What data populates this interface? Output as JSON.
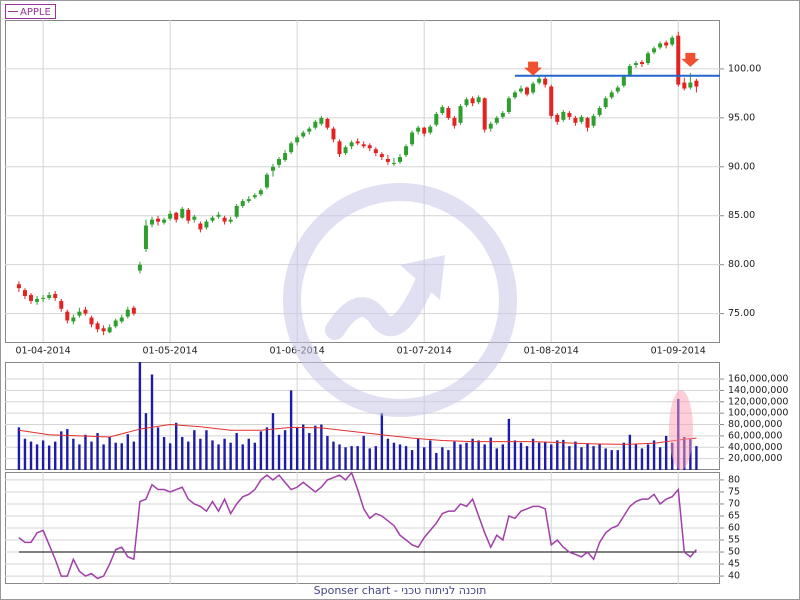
{
  "footer": "Sponser chart - תוכנה לניתוח טכני",
  "chart_data": [
    {
      "type": "candlestick",
      "series": [
        {
          "name": "APPLE",
          "color": "#993399",
          "up_color": "#2e9e2e",
          "down_color": "#e32222",
          "ohlc": [
            [
              78.0,
              78.3,
              77.2,
              77.6
            ],
            [
              77.4,
              77.6,
              76.5,
              76.8
            ],
            [
              76.9,
              77.1,
              76.0,
              76.3
            ],
            [
              76.2,
              76.8,
              75.9,
              76.5
            ],
            [
              76.5,
              76.9,
              76.2,
              76.6
            ],
            [
              76.6,
              77.2,
              76.4,
              76.9
            ],
            [
              77.0,
              77.3,
              76.3,
              76.6
            ],
            [
              76.3,
              76.5,
              75.2,
              75.5
            ],
            [
              75.2,
              75.4,
              74.0,
              74.3
            ],
            [
              74.2,
              74.9,
              73.9,
              74.6
            ],
            [
              74.8,
              75.6,
              74.6,
              75.2
            ],
            [
              75.4,
              75.7,
              74.8,
              75.0
            ],
            [
              74.6,
              74.8,
              73.6,
              73.9
            ],
            [
              74.0,
              74.2,
              73.1,
              73.4
            ],
            [
              73.5,
              73.8,
              72.8,
              73.2
            ],
            [
              73.1,
              73.9,
              73.0,
              73.6
            ],
            [
              73.7,
              74.5,
              73.5,
              74.3
            ],
            [
              74.2,
              74.9,
              74.0,
              74.6
            ],
            [
              74.7,
              75.7,
              74.5,
              75.4
            ],
            [
              75.6,
              75.8,
              74.8,
              75.0
            ],
            [
              79.4,
              80.3,
              79.1,
              80.0
            ],
            [
              81.6,
              84.6,
              81.3,
              84.0
            ],
            [
              84.1,
              84.9,
              83.8,
              84.6
            ],
            [
              84.7,
              85.0,
              84.0,
              84.4
            ],
            [
              84.3,
              84.8,
              84.1,
              84.6
            ],
            [
              84.7,
              85.5,
              84.5,
              85.2
            ],
            [
              85.3,
              85.4,
              84.3,
              84.6
            ],
            [
              84.8,
              85.9,
              84.7,
              85.7
            ],
            [
              85.6,
              85.8,
              84.2,
              84.5
            ],
            [
              84.6,
              85.1,
              84.3,
              84.9
            ],
            [
              84.2,
              84.4,
              83.3,
              83.6
            ],
            [
              83.8,
              84.6,
              83.6,
              84.4
            ],
            [
              84.5,
              85.0,
              84.3,
              84.8
            ],
            [
              84.9,
              85.4,
              84.7,
              85.1
            ],
            [
              84.8,
              85.0,
              84.1,
              84.4
            ],
            [
              84.4,
              84.9,
              84.2,
              84.6
            ],
            [
              84.9,
              86.2,
              84.7,
              86.0
            ],
            [
              86.0,
              86.7,
              85.8,
              86.5
            ],
            [
              86.5,
              87.0,
              86.3,
              86.7
            ],
            [
              86.9,
              87.3,
              86.7,
              87.1
            ],
            [
              87.2,
              87.8,
              87.0,
              87.6
            ],
            [
              87.9,
              89.4,
              87.7,
              89.2
            ],
            [
              89.6,
              90.3,
              89.0,
              90.0
            ],
            [
              90.2,
              91.0,
              89.9,
              90.8
            ],
            [
              90.7,
              91.7,
              90.5,
              91.4
            ],
            [
              91.5,
              92.6,
              91.3,
              92.4
            ],
            [
              92.5,
              93.2,
              92.2,
              93.0
            ],
            [
              93.1,
              93.7,
              92.9,
              93.5
            ],
            [
              93.6,
              94.1,
              93.3,
              93.9
            ],
            [
              94.0,
              94.8,
              93.8,
              94.6
            ],
            [
              94.4,
              95.2,
              94.2,
              95.0
            ],
            [
              94.9,
              95.0,
              93.8,
              94.0
            ],
            [
              93.9,
              94.1,
              92.5,
              92.8
            ],
            [
              92.6,
              92.8,
              91.0,
              91.3
            ],
            [
              91.4,
              92.2,
              91.2,
              92.0
            ],
            [
              92.1,
              92.7,
              91.8,
              92.5
            ],
            [
              92.6,
              92.9,
              92.2,
              92.4
            ],
            [
              92.3,
              92.6,
              91.9,
              92.1
            ],
            [
              92.2,
              92.4,
              91.6,
              91.9
            ],
            [
              91.8,
              92.0,
              91.1,
              91.4
            ],
            [
              91.3,
              91.5,
              90.7,
              91.0
            ],
            [
              90.8,
              91.2,
              90.2,
              90.5
            ],
            [
              90.3,
              90.9,
              90.1,
              90.4
            ],
            [
              90.5,
              91.3,
              90.3,
              91.0
            ],
            [
              91.2,
              92.3,
              91.0,
              92.1
            ],
            [
              92.3,
              93.7,
              92.1,
              93.5
            ],
            [
              93.6,
              94.2,
              93.3,
              94.0
            ],
            [
              94.0,
              94.1,
              93.1,
              93.4
            ],
            [
              93.5,
              94.3,
              93.3,
              94.1
            ],
            [
              94.3,
              95.6,
              94.1,
              95.4
            ],
            [
              95.5,
              96.3,
              95.3,
              96.1
            ],
            [
              96.0,
              96.2,
              94.8,
              95.0
            ],
            [
              95.0,
              95.2,
              93.9,
              94.2
            ],
            [
              94.5,
              96.4,
              94.3,
              96.2
            ],
            [
              96.3,
              97.1,
              96.1,
              96.9
            ],
            [
              97.0,
              97.2,
              96.2,
              96.5
            ],
            [
              96.6,
              97.3,
              96.4,
              97.1
            ],
            [
              97.0,
              97.1,
              93.5,
              93.8
            ],
            [
              93.9,
              94.6,
              93.6,
              94.4
            ],
            [
              94.5,
              95.2,
              94.3,
              95.0
            ],
            [
              95.1,
              95.7,
              94.9,
              95.5
            ],
            [
              95.6,
              97.2,
              95.4,
              97.0
            ],
            [
              97.1,
              97.8,
              96.9,
              97.6
            ],
            [
              97.7,
              98.3,
              97.5,
              98.0
            ],
            [
              98.1,
              98.2,
              97.2,
              97.4
            ],
            [
              97.6,
              98.7,
              97.4,
              98.5
            ],
            [
              98.6,
              99.3,
              98.4,
              99.0
            ],
            [
              99.0,
              99.2,
              98.1,
              98.4
            ],
            [
              98.2,
              98.4,
              94.9,
              95.2
            ],
            [
              95.3,
              95.5,
              94.3,
              94.6
            ],
            [
              94.8,
              95.8,
              94.6,
              95.6
            ],
            [
              95.5,
              95.7,
              94.8,
              95.1
            ],
            [
              95.0,
              95.2,
              94.2,
              94.5
            ],
            [
              94.6,
              95.3,
              94.4,
              95.1
            ],
            [
              95.0,
              95.1,
              93.6,
              94.0
            ],
            [
              94.2,
              95.4,
              94.0,
              95.2
            ],
            [
              95.3,
              96.2,
              95.1,
              96.0
            ],
            [
              96.1,
              97.2,
              95.9,
              97.0
            ],
            [
              97.1,
              97.8,
              96.9,
              97.6
            ],
            [
              97.7,
              98.3,
              97.5,
              98.1
            ],
            [
              98.3,
              99.4,
              98.1,
              99.2
            ],
            [
              99.4,
              100.5,
              99.2,
              100.3
            ],
            [
              100.4,
              100.8,
              100.1,
              100.6
            ],
            [
              100.7,
              100.9,
              100.2,
              100.5
            ],
            [
              100.6,
              101.8,
              100.4,
              101.6
            ],
            [
              101.7,
              102.3,
              101.5,
              102.1
            ],
            [
              102.2,
              102.8,
              102.0,
              102.6
            ],
            [
              102.7,
              102.9,
              102.1,
              102.4
            ],
            [
              102.5,
              103.4,
              102.3,
              103.2
            ],
            [
              103.4,
              103.8,
              98.2,
              98.4
            ],
            [
              98.6,
              99.1,
              97.8,
              98.0
            ],
            [
              98.1,
              99.6,
              97.9,
              98.6
            ],
            [
              98.8,
              99.0,
              97.6,
              98.2
            ]
          ]
        }
      ],
      "xlim": [
        -2.3,
        115.9
      ],
      "xticks": [
        {
          "value": 4,
          "label": "01-04-2014"
        },
        {
          "value": 25,
          "label": "01-05-2014"
        },
        {
          "value": 46,
          "label": "01-06-2014"
        },
        {
          "value": 67,
          "label": "01-07-2014"
        },
        {
          "value": 88,
          "label": "01-08-2014"
        },
        {
          "value": 109,
          "label": "01-09-2014"
        }
      ],
      "ylim": [
        72.1,
        105
      ],
      "yticks": [
        {
          "value": 75,
          "label": "75.00"
        },
        {
          "value": 80,
          "label": "80.00"
        },
        {
          "value": 85,
          "label": "85.00"
        },
        {
          "value": 90,
          "label": "90.00"
        },
        {
          "value": 95,
          "label": "95.00"
        },
        {
          "value": 100,
          "label": "100.00"
        }
      ],
      "grid": true,
      "hline": {
        "value": 99.3,
        "x_start": 82,
        "color": "#2266cc"
      },
      "arrows": {
        "x": [
          85,
          111
        ],
        "color": "#f05030"
      }
    },
    {
      "type": "bar",
      "values": [
        75000000,
        55000000,
        50000000,
        45000000,
        52000000,
        43000000,
        50000000,
        68000000,
        72000000,
        55000000,
        45000000,
        62000000,
        50000000,
        65000000,
        45000000,
        58000000,
        48000000,
        47000000,
        63000000,
        50000000,
        190000000,
        100000000,
        168000000,
        75000000,
        58000000,
        47000000,
        83000000,
        58000000,
        50000000,
        70000000,
        55000000,
        70000000,
        52000000,
        45000000,
        55000000,
        48000000,
        65000000,
        45000000,
        55000000,
        48000000,
        68000000,
        75000000,
        100000000,
        62000000,
        70000000,
        140000000,
        75000000,
        80000000,
        65000000,
        78000000,
        80000000,
        60000000,
        50000000,
        45000000,
        40000000,
        42000000,
        42000000,
        60000000,
        38000000,
        42000000,
        100000000,
        55000000,
        48000000,
        45000000,
        42000000,
        35000000,
        55000000,
        40000000,
        52000000,
        30000000,
        40000000,
        35000000,
        50000000,
        45000000,
        48000000,
        55000000,
        52000000,
        45000000,
        57000000,
        38000000,
        45000000,
        90000000,
        52000000,
        48000000,
        42000000,
        55000000,
        48000000,
        50000000,
        45000000,
        52000000,
        53000000,
        42000000,
        50000000,
        40000000,
        47000000,
        42000000,
        45000000,
        38000000,
        35000000,
        35000000,
        48000000,
        62000000,
        45000000,
        38000000,
        45000000,
        52000000,
        40000000,
        60000000,
        48000000,
        125000000,
        58000000,
        55000000,
        42000000
      ],
      "color": "#1c1ca8",
      "ma": {
        "x": [
          0,
          5,
          10,
          15,
          20,
          25,
          30,
          35,
          40,
          45,
          50,
          55,
          60,
          65,
          70,
          75,
          80,
          85,
          90,
          95,
          100,
          105,
          110,
          112
        ],
        "values": [
          70000000,
          62000000,
          60000000,
          58000000,
          72000000,
          80000000,
          76000000,
          70000000,
          70000000,
          75000000,
          74000000,
          68000000,
          62000000,
          56000000,
          52000000,
          50000000,
          50000000,
          50000000,
          48000000,
          46000000,
          45000000,
          47000000,
          54000000,
          56000000
        ],
        "color": "#e03030"
      },
      "xlim": [
        -2.3,
        115.9
      ],
      "ylim": [
        0,
        190000000
      ],
      "yticks": [
        {
          "value": 20000000,
          "label": "20,000,000"
        },
        {
          "value": 40000000,
          "label": "40,000,000"
        },
        {
          "value": 60000000,
          "label": "60,000,000"
        },
        {
          "value": 80000000,
          "label": "80,000,000"
        },
        {
          "value": 100000000,
          "label": "100,000,000"
        },
        {
          "value": 120000000,
          "label": "120,000,000"
        },
        {
          "value": 140000000,
          "label": "140,000,000"
        },
        {
          "value": 160000000,
          "label": "160,000,000"
        }
      ],
      "grid": true
    },
    {
      "type": "line",
      "values": [
        56,
        54,
        54,
        58,
        59,
        53,
        47,
        40,
        40,
        47,
        42,
        40,
        41,
        39,
        40,
        45,
        51,
        52,
        48,
        47,
        71,
        72,
        78,
        76,
        76,
        75,
        76,
        77,
        72,
        70,
        69,
        67,
        71,
        67,
        72,
        66,
        70,
        73,
        74,
        76,
        80,
        82,
        80,
        82,
        79,
        76,
        77,
        79,
        77,
        75,
        77,
        80,
        81,
        82,
        80,
        83,
        76,
        68,
        64,
        66,
        65,
        63,
        61,
        57,
        55,
        53,
        52,
        56,
        59,
        62,
        66,
        67,
        67,
        70,
        69,
        72,
        65,
        58,
        52,
        57,
        55,
        65,
        64,
        67,
        68,
        69,
        69,
        68,
        53,
        55,
        52,
        50,
        49,
        48,
        50,
        47,
        54,
        58,
        60,
        61,
        65,
        69,
        71,
        72,
        72,
        74,
        70,
        72,
        73,
        76,
        50,
        48,
        51
      ],
      "color": "#a040a8",
      "reference": 50,
      "xlim": [
        -2.3,
        115.9
      ],
      "ylim": [
        36.7,
        83.3
      ],
      "yticks": [
        40,
        45,
        50,
        55,
        60,
        65,
        70,
        75,
        80
      ],
      "grid": true
    }
  ]
}
